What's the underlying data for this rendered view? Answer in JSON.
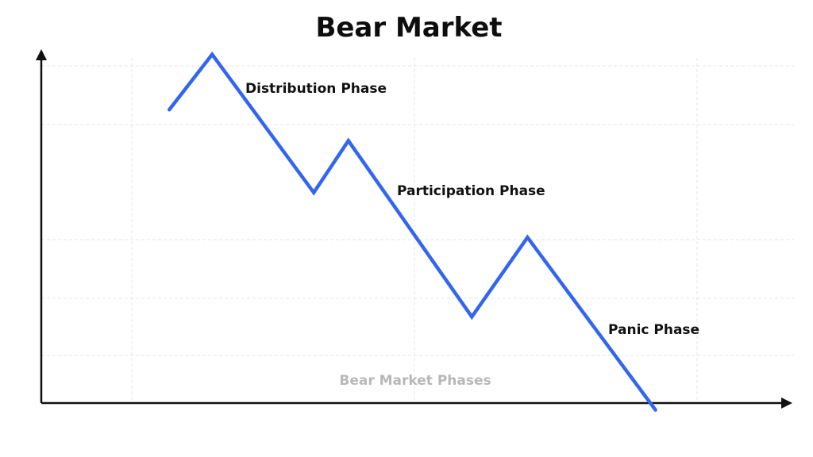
{
  "chart_data": {
    "type": "line",
    "title": "Bear Market",
    "watermark": "Bear Market Phases",
    "xlabel": "",
    "ylabel": "",
    "grid": true,
    "xlim": [
      0,
      100
    ],
    "ylim": [
      0,
      100
    ],
    "x": [
      17,
      22.7,
      36.2,
      40.8,
      57.2,
      64.6,
      81.6
    ],
    "y": [
      85,
      101,
      61,
      76,
      25,
      48,
      -2
    ],
    "annotations": [
      {
        "text": "Distribution Phase"
      },
      {
        "text": "Participation Phase"
      },
      {
        "text": "Panic Phase"
      }
    ],
    "colors": {
      "line": "#3366ee",
      "axis": "#111111",
      "grid": "#e6e6e6"
    }
  }
}
